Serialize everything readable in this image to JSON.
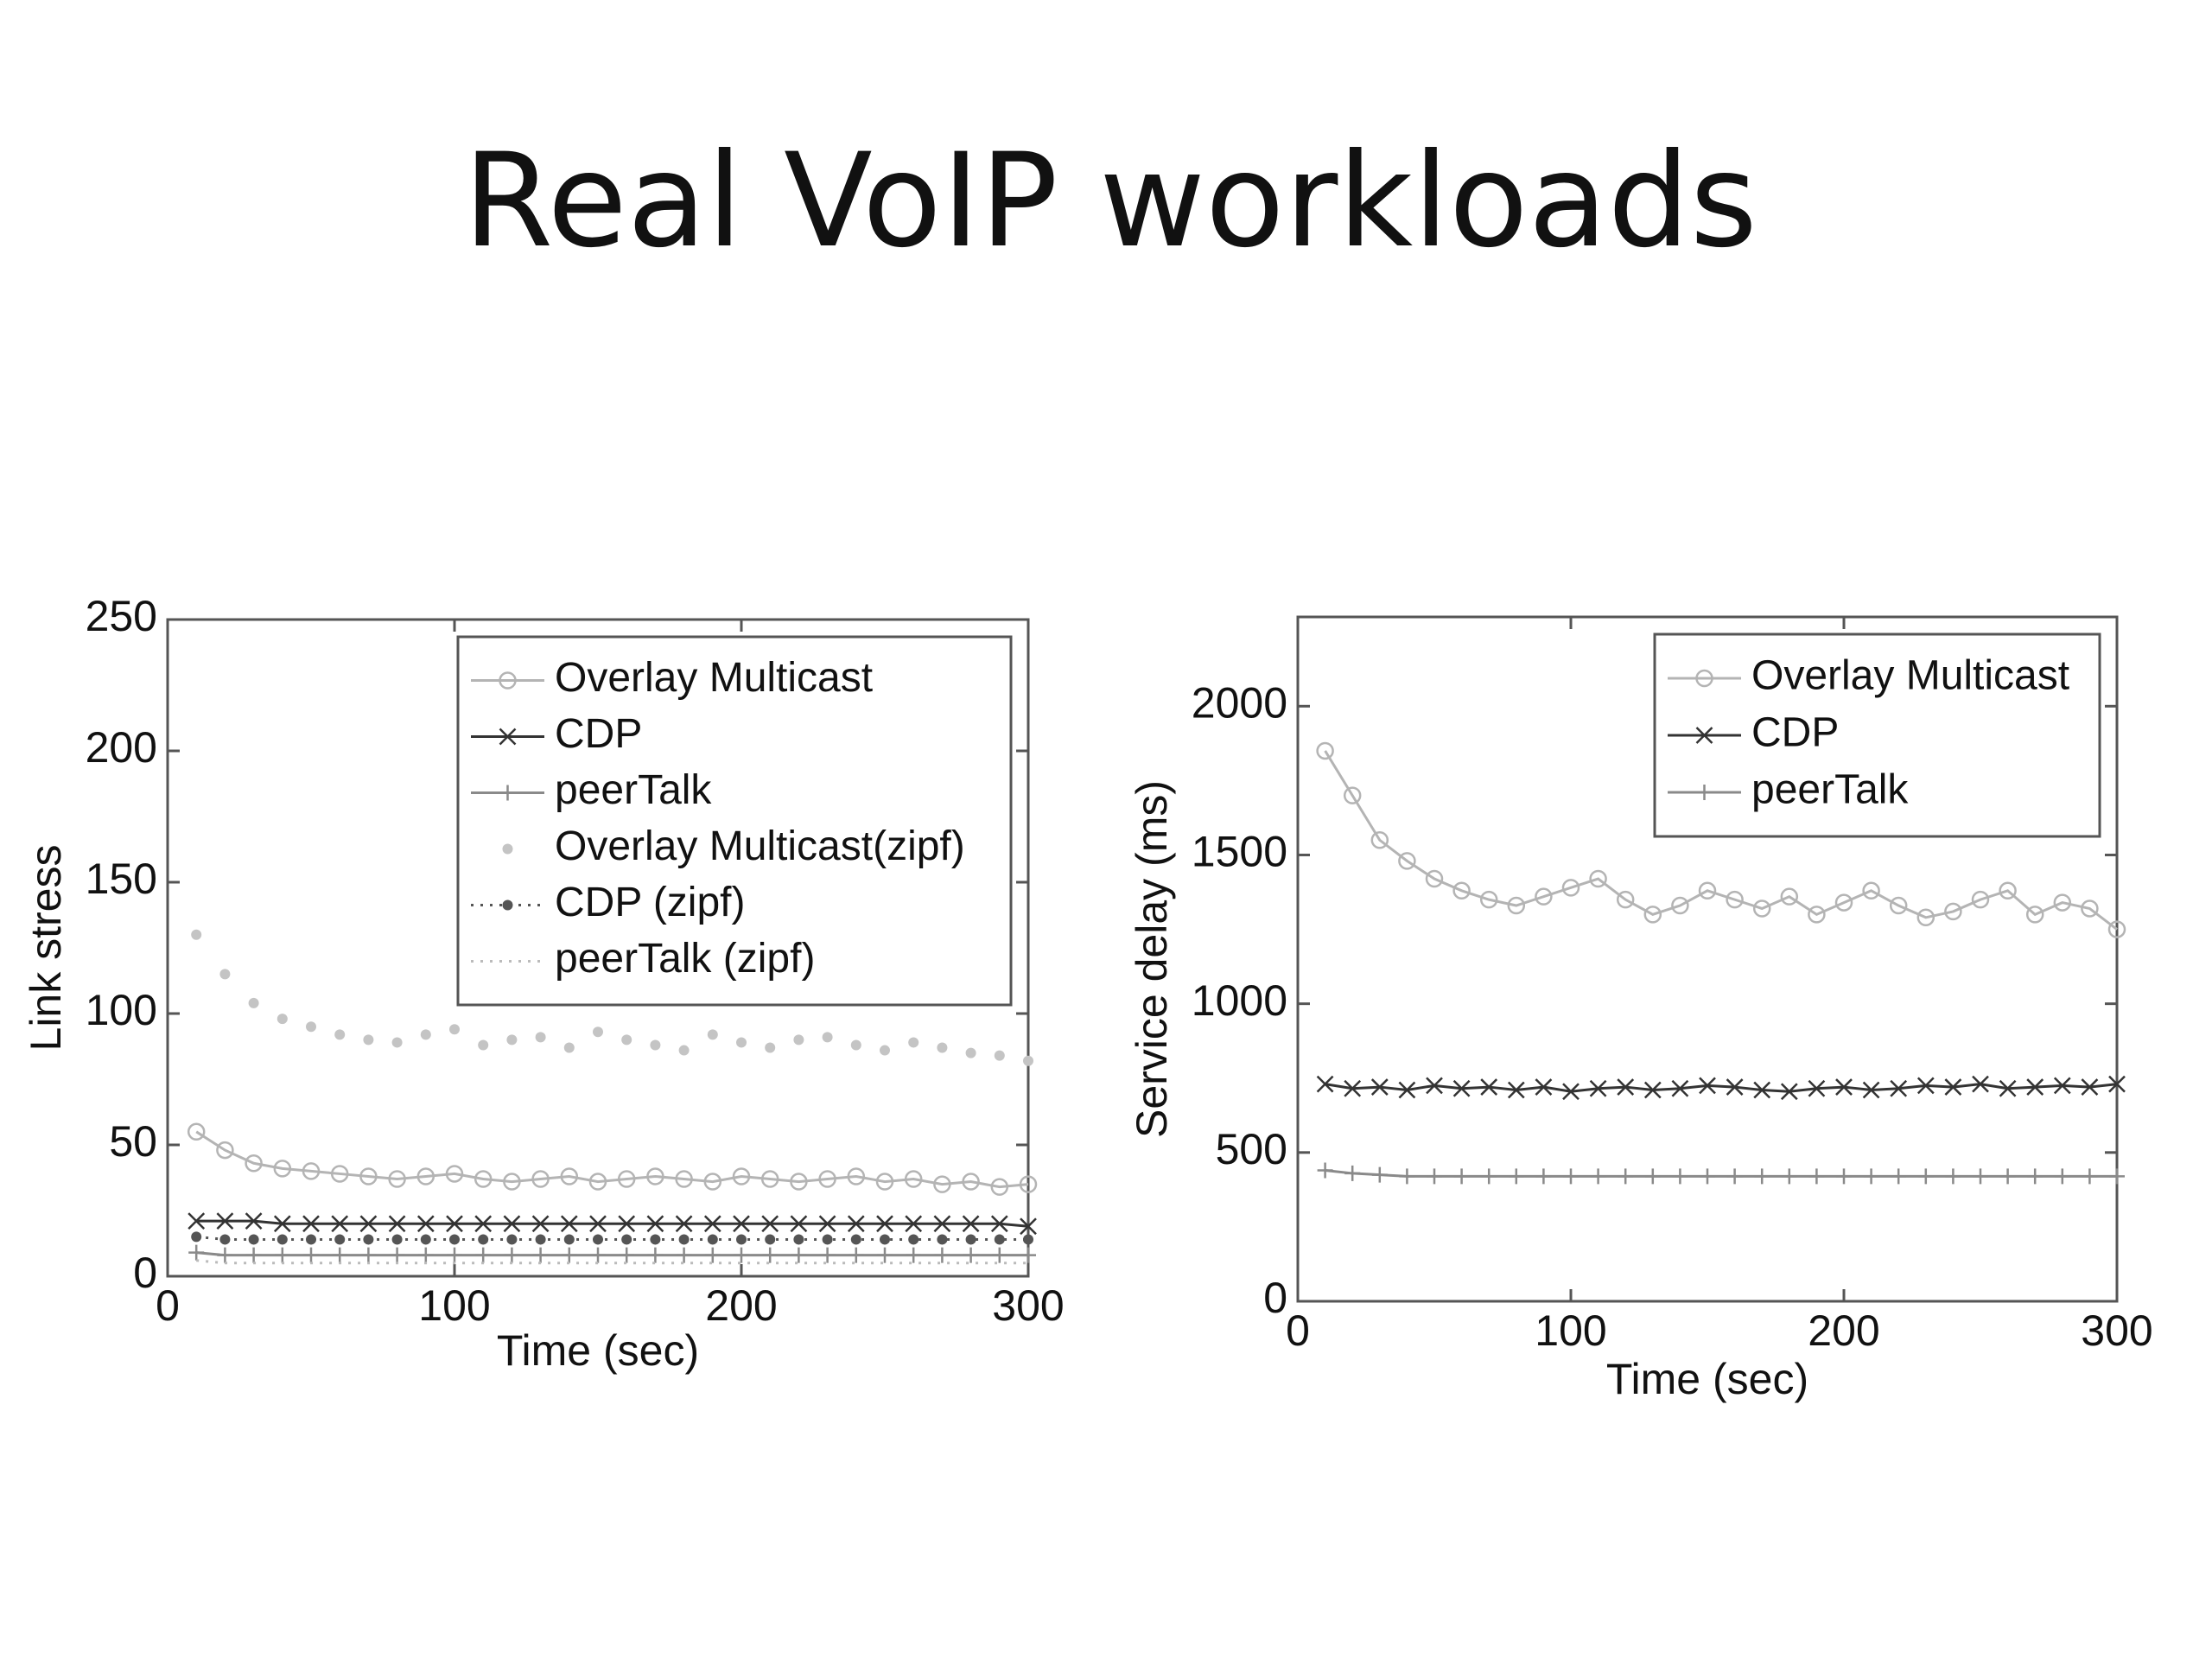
{
  "title": "Real VoIP workloads",
  "chart_data": [
    {
      "type": "line",
      "xlabel": "Time (sec)",
      "ylabel": "Link stress",
      "xlim": [
        0,
        300
      ],
      "xticks": [
        0,
        100,
        200,
        300
      ],
      "ylim": [
        0,
        250
      ],
      "yticks": [
        0,
        50,
        100,
        150,
        200,
        250
      ],
      "legend": "upper right",
      "x": [
        10,
        20,
        30,
        40,
        50,
        60,
        70,
        80,
        90,
        100,
        110,
        120,
        130,
        140,
        150,
        160,
        170,
        180,
        190,
        200,
        210,
        220,
        230,
        240,
        250,
        260,
        270,
        280,
        290,
        300
      ],
      "series": [
        {
          "name": "Overlay Multicast",
          "color": "#b4b4b4",
          "marker": "circle",
          "linestyle": "solid",
          "values": [
            55,
            48,
            43,
            41,
            40,
            39,
            38,
            37,
            38,
            39,
            37,
            36,
            37,
            38,
            36,
            37,
            38,
            37,
            36,
            38,
            37,
            36,
            37,
            38,
            36,
            37,
            35,
            36,
            34,
            35
          ]
        },
        {
          "name": "CDP",
          "color": "#333333",
          "marker": "x",
          "linestyle": "solid",
          "values": [
            21,
            21,
            21,
            20,
            20,
            20,
            20,
            20,
            20,
            20,
            20,
            20,
            20,
            20,
            20,
            20,
            20,
            20,
            20,
            20,
            20,
            20,
            20,
            20,
            20,
            20,
            20,
            20,
            20,
            19
          ]
        },
        {
          "name": "peerTalk",
          "color": "#8a8a8a",
          "marker": "plus",
          "linestyle": "solid",
          "values": [
            9,
            8,
            8,
            8,
            8,
            8,
            8,
            8,
            8,
            8,
            8,
            8,
            8,
            8,
            8,
            8,
            8,
            8,
            8,
            8,
            8,
            8,
            8,
            8,
            8,
            8,
            8,
            8,
            8,
            8
          ]
        },
        {
          "name": "Overlay Multicast(zipf)",
          "color": "#c4c4c4",
          "marker": "dot",
          "linestyle": "none",
          "values": [
            130,
            115,
            104,
            98,
            95,
            92,
            90,
            89,
            92,
            94,
            88,
            90,
            91,
            87,
            93,
            90,
            88,
            86,
            92,
            89,
            87,
            90,
            91,
            88,
            86,
            89,
            87,
            85,
            84,
            82
          ]
        },
        {
          "name": "CDP (zipf)",
          "color": "#555555",
          "marker": "dot",
          "linestyle": "dotted",
          "values": [
            15,
            14,
            14,
            14,
            14,
            14,
            14,
            14,
            14,
            14,
            14,
            14,
            14,
            14,
            14,
            14,
            14,
            14,
            14,
            14,
            14,
            14,
            14,
            14,
            14,
            14,
            14,
            14,
            14,
            14
          ]
        },
        {
          "name": "peerTalk (zipf)",
          "color": "#bbbbbb",
          "marker": "none",
          "linestyle": "dotted",
          "values": [
            6,
            5,
            5,
            5,
            5,
            5,
            5,
            5,
            5,
            5,
            5,
            5,
            5,
            5,
            5,
            5,
            5,
            5,
            5,
            5,
            5,
            5,
            5,
            5,
            5,
            5,
            5,
            5,
            5,
            5
          ]
        }
      ]
    },
    {
      "type": "line",
      "xlabel": "Time (sec)",
      "ylabel": "Service delay (ms)",
      "xlim": [
        0,
        300
      ],
      "xticks": [
        0,
        100,
        200,
        300
      ],
      "ylim": [
        0,
        2300
      ],
      "yticks": [
        0,
        500,
        1000,
        1500,
        2000
      ],
      "legend": "upper right",
      "x": [
        10,
        20,
        30,
        40,
        50,
        60,
        70,
        80,
        90,
        100,
        110,
        120,
        130,
        140,
        150,
        160,
        170,
        180,
        190,
        200,
        210,
        220,
        230,
        240,
        250,
        260,
        270,
        280,
        290,
        300
      ],
      "series": [
        {
          "name": "Overlay Multicast",
          "color": "#b4b4b4",
          "marker": "circle",
          "linestyle": "solid",
          "values": [
            1850,
            1700,
            1550,
            1480,
            1420,
            1380,
            1350,
            1330,
            1360,
            1390,
            1420,
            1350,
            1300,
            1330,
            1380,
            1350,
            1320,
            1360,
            1300,
            1340,
            1380,
            1330,
            1290,
            1310,
            1350,
            1380,
            1300,
            1340,
            1320,
            1250
          ]
        },
        {
          "name": "CDP",
          "color": "#333333",
          "marker": "x",
          "linestyle": "solid",
          "values": [
            730,
            715,
            720,
            710,
            725,
            715,
            720,
            710,
            720,
            705,
            715,
            720,
            710,
            715,
            725,
            720,
            710,
            705,
            715,
            720,
            710,
            715,
            725,
            720,
            730,
            715,
            720,
            725,
            720,
            730
          ]
        },
        {
          "name": "peerTalk",
          "color": "#8a8a8a",
          "marker": "plus",
          "linestyle": "solid",
          "values": [
            440,
            430,
            425,
            420,
            420,
            420,
            420,
            420,
            420,
            420,
            420,
            420,
            420,
            420,
            420,
            420,
            420,
            420,
            420,
            420,
            420,
            420,
            420,
            420,
            420,
            420,
            420,
            420,
            420,
            420
          ]
        }
      ]
    }
  ]
}
